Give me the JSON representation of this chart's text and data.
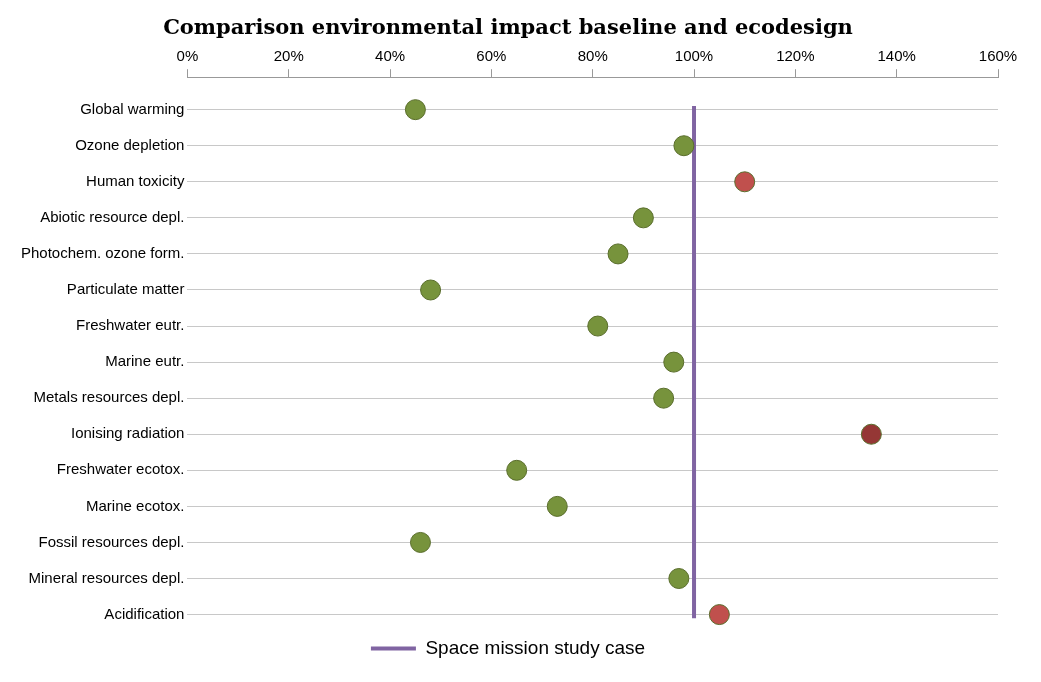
{
  "chart_data": {
    "type": "scatter",
    "title": "Comparison environmental impact baseline and ecodesign",
    "categories": [
      "Global warming",
      "Ozone depletion",
      "Human toxicity",
      "Abiotic resource depl.",
      "Photochem. ozone form.",
      "Particulate matter",
      "Freshwater eutr.",
      "Marine eutr.",
      "Metals resources depl.",
      "Ionising radiation",
      "Freshwater ecotox.",
      "Marine ecotox.",
      "Fossil resources depl.",
      "Mineral resources depl.",
      "Acidification"
    ],
    "series": [
      {
        "values": [
          45,
          98,
          110,
          90,
          85,
          48,
          81,
          96,
          94,
          135,
          65,
          73,
          46,
          97,
          105
        ],
        "colors": [
          "#77933c",
          "#77933c",
          "#c0504d",
          "#77933c",
          "#77933c",
          "#77933c",
          "#77933c",
          "#77933c",
          "#77933c",
          "#953735",
          "#77933c",
          "#77933c",
          "#77933c",
          "#77933c",
          "#c0504d"
        ]
      }
    ],
    "orientation": "horizontal",
    "xlim": [
      0,
      160
    ],
    "xticks": [
      {
        "value": 0,
        "label": "0%"
      },
      {
        "value": 20,
        "label": "20%"
      },
      {
        "value": 40,
        "label": "40%"
      },
      {
        "value": 60,
        "label": "60%"
      },
      {
        "value": 80,
        "label": "80%"
      },
      {
        "value": 100,
        "label": "100%"
      },
      {
        "value": 120,
        "label": "120%"
      },
      {
        "value": 140,
        "label": "140%"
      },
      {
        "value": 160,
        "label": "160%"
      }
    ],
    "ref_lines": [
      {
        "axis": "x",
        "value": 100,
        "label": "Space mission study case",
        "color": "#8064a2"
      }
    ],
    "grid": "y",
    "legend": "bottom",
    "marker": "circle"
  }
}
